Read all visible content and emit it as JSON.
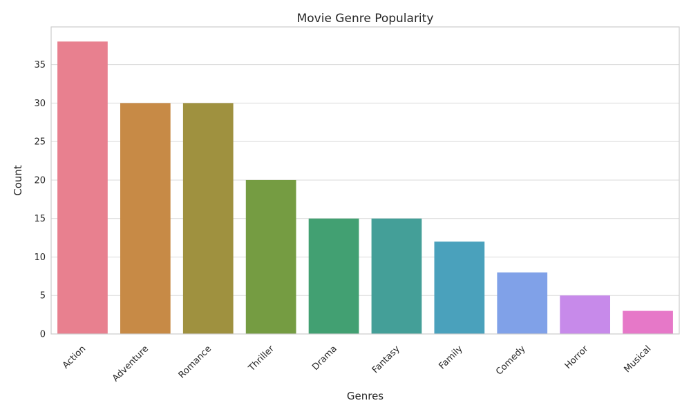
{
  "chart_data": {
    "type": "bar",
    "title": "Movie Genre Popularity",
    "xlabel": "Genres",
    "ylabel": "Count",
    "categories": [
      "Action",
      "Adventure",
      "Romance",
      "Thriller",
      "Drama",
      "Fantasy",
      "Family",
      "Comedy",
      "Horror",
      "Musical"
    ],
    "values": [
      38,
      30,
      30,
      20,
      15,
      15,
      12,
      8,
      5,
      3
    ],
    "colors": [
      "#e8808f",
      "#c78a46",
      "#9f913f",
      "#759c42",
      "#42a072",
      "#449f98",
      "#4aa1bc",
      "#80a1e8",
      "#c78aea",
      "#e678c8"
    ],
    "ylim": [
      0,
      39.9
    ],
    "yticks": [
      0,
      5,
      10,
      15,
      20,
      25,
      30,
      35
    ],
    "grid": true,
    "x_tick_rotation": 45
  }
}
